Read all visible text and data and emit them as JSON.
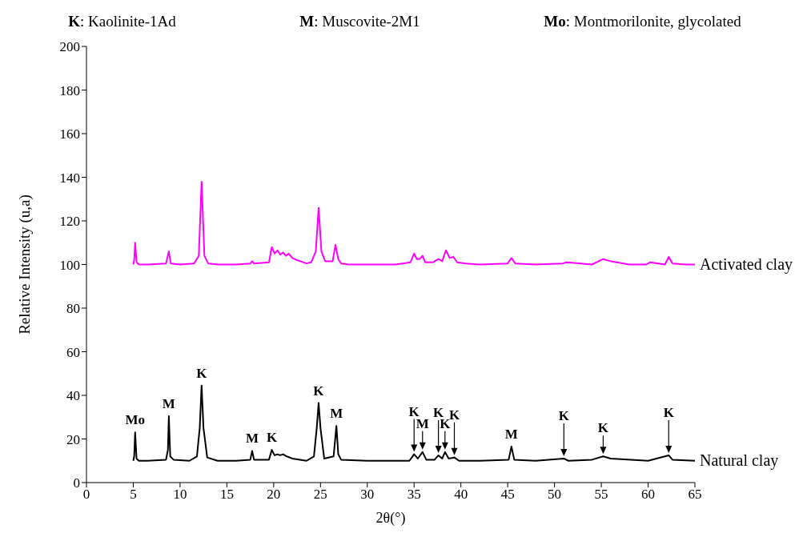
{
  "chart_data": {
    "type": "line",
    "xlabel": "2θ(°)",
    "ylabel": "Relative Intensity (u,a)",
    "xlim": [
      0,
      65
    ],
    "xticks": [
      0,
      5,
      10,
      15,
      20,
      25,
      30,
      35,
      40,
      45,
      50,
      55,
      60,
      65
    ],
    "ylim": [
      0,
      200
    ],
    "yticks": [
      0,
      20,
      40,
      60,
      80,
      100,
      120,
      140,
      160,
      180,
      200
    ],
    "marker": "none",
    "line_style": "solid",
    "series": [
      {
        "name": "Activated clay",
        "color": "#ff00ff",
        "x": [
          5,
          5.1,
          5.2,
          5.35,
          5.6,
          6.5,
          8.5,
          8.8,
          9.0,
          10,
          11.5,
          12.0,
          12.3,
          12.6,
          13.0,
          14,
          16,
          17.5,
          17.7,
          17.9,
          19.5,
          19.8,
          20.1,
          20.4,
          20.7,
          21.0,
          21.3,
          21.6,
          22.0,
          22.5,
          23.5,
          24.0,
          24.5,
          24.8,
          25.1,
          25.5,
          26.3,
          26.6,
          26.9,
          27.2,
          28,
          30,
          33,
          34.6,
          35.0,
          35.3,
          35.6,
          35.9,
          36.2,
          37.0,
          37.6,
          38.0,
          38.4,
          38.8,
          39.2,
          39.6,
          40.5,
          42,
          45.0,
          45.4,
          45.8,
          48,
          50.9,
          51.3,
          54,
          55.2,
          56,
          58,
          59.8,
          60.2,
          61.8,
          62.2,
          62.6,
          64,
          65
        ],
        "values": [
          100,
          102,
          110,
          101,
          100,
          100,
          100.5,
          106,
          100.5,
          100,
          100.5,
          104,
          138,
          104,
          100.5,
          100,
          100,
          100.5,
          101.5,
          100.5,
          101,
          108,
          105,
          106.5,
          104.5,
          105.5,
          104,
          105,
          103,
          102,
          100.5,
          101,
          106,
          126,
          106,
          101.5,
          101.5,
          109,
          102.5,
          100.5,
          100,
          100,
          100,
          101,
          105,
          102.5,
          102.5,
          104,
          101,
          101,
          102.5,
          101.5,
          106.5,
          103,
          103.5,
          101,
          100.5,
          100,
          100.5,
          103,
          100.5,
          100,
          100.5,
          101,
          100,
          102.5,
          101.5,
          100,
          100,
          101,
          100,
          103.5,
          100.5,
          100,
          100
        ]
      },
      {
        "name": "Natural clay",
        "color": "#000000",
        "x": [
          5,
          5.1,
          5.2,
          5.35,
          5.6,
          6.5,
          8.5,
          8.7,
          8.8,
          8.95,
          9.3,
          11,
          11.8,
          12.1,
          12.3,
          12.5,
          12.9,
          14,
          16,
          17.5,
          17.7,
          17.9,
          19.5,
          19.8,
          20.1,
          20.4,
          20.7,
          21.0,
          21.4,
          22.0,
          23.5,
          24.3,
          24.6,
          24.8,
          25.0,
          25.4,
          26.4,
          26.7,
          26.9,
          27.2,
          30,
          34.5,
          35.0,
          35.4,
          35.9,
          36.3,
          37.2,
          37.6,
          38.0,
          38.3,
          38.7,
          39.3,
          39.8,
          42,
          45.1,
          45.4,
          45.7,
          48,
          51.0,
          51.5,
          54,
          55.2,
          56,
          60,
          62.2,
          62.6,
          65
        ],
        "values": [
          10,
          12,
          23,
          11,
          10,
          10,
          10.5,
          15,
          30.5,
          12,
          10.5,
          10,
          12,
          25,
          44.5,
          25,
          11.5,
          10,
          10,
          10.5,
          14.5,
          10.5,
          10.5,
          15,
          12.5,
          13,
          12.5,
          13,
          12,
          11,
          10,
          12,
          25,
          36.5,
          25,
          11,
          12,
          26,
          13,
          10.5,
          10,
          10,
          13,
          11,
          14,
          10.5,
          10.5,
          12.5,
          11,
          14,
          11,
          11.5,
          10,
          10,
          10.5,
          16.5,
          10.5,
          10,
          11,
          10,
          10.5,
          12,
          11,
          10,
          12.5,
          10.5,
          10
        ]
      }
    ],
    "annotations": [
      "K: Kaolinite-1Ad",
      "M: Muscovite-2M1",
      "Mo: Montmorilonite, glycolated",
      {
        "text": "Mo",
        "x": 5.2,
        "y": 23
      },
      {
        "text": "M",
        "x": 8.8,
        "y": 30.5
      },
      {
        "text": "K",
        "x": 12.3,
        "y": 44.5
      },
      {
        "text": "M",
        "x": 17.7,
        "y": 14.5
      },
      {
        "text": "K",
        "x": 19.8,
        "y": 15
      },
      {
        "text": "K",
        "x": 24.8,
        "y": 36.5
      },
      {
        "text": "M",
        "x": 26.7,
        "y": 26
      },
      {
        "text": "K",
        "x": 35.0,
        "y": 13
      },
      {
        "text": "M",
        "x": 35.9,
        "y": 14
      },
      {
        "text": "K",
        "x": 37.6,
        "y": 12.5
      },
      {
        "text": "K",
        "x": 38.3,
        "y": 14
      },
      {
        "text": "K",
        "x": 39.3,
        "y": 11.5
      },
      {
        "text": "M",
        "x": 45.4,
        "y": 16.5
      },
      {
        "text": "K",
        "x": 51.0,
        "y": 11
      },
      {
        "text": "K",
        "x": 55.2,
        "y": 12
      },
      {
        "text": "K",
        "x": 62.2,
        "y": 12.5
      }
    ]
  }
}
